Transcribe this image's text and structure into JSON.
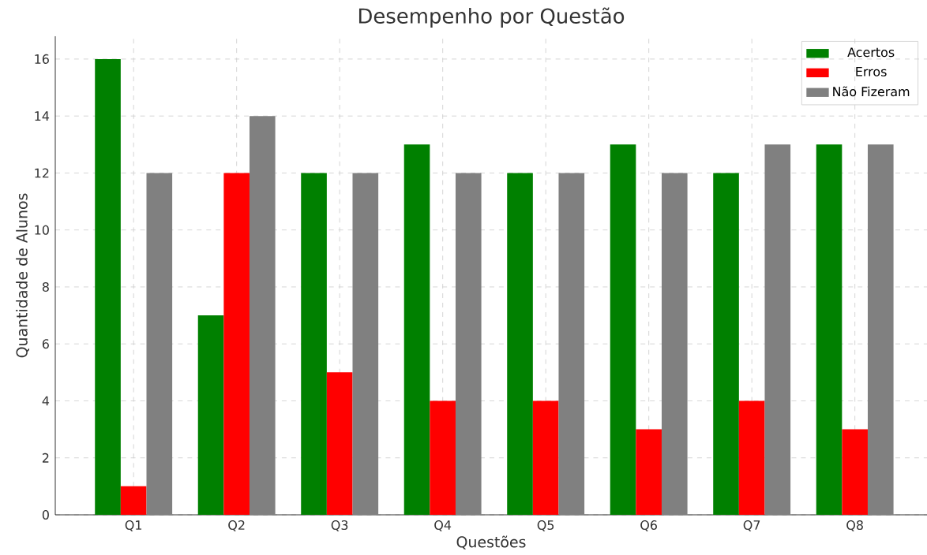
{
  "chart_data": {
    "type": "bar",
    "title": "Desempenho por Questão",
    "xlabel": "Questões",
    "ylabel": "Quantidade de Alunos",
    "categories": [
      "Q1",
      "Q2",
      "Q3",
      "Q4",
      "Q5",
      "Q6",
      "Q7",
      "Q8"
    ],
    "series": [
      {
        "name": "Acertos",
        "color": "#008000",
        "values": [
          16,
          7,
          12,
          13,
          12,
          13,
          12,
          13
        ]
      },
      {
        "name": "Erros",
        "color": "#ff0000",
        "values": [
          1,
          12,
          5,
          4,
          4,
          3,
          4,
          3
        ]
      },
      {
        "name": "Não Fizeram",
        "color": "#808080",
        "values": [
          12,
          14,
          12,
          12,
          12,
          12,
          13,
          13
        ]
      }
    ],
    "ylim": [
      0,
      16.8
    ],
    "yticks": [
      0,
      2,
      4,
      6,
      8,
      10,
      12,
      14,
      16
    ],
    "grid": true,
    "legend": "top right"
  }
}
